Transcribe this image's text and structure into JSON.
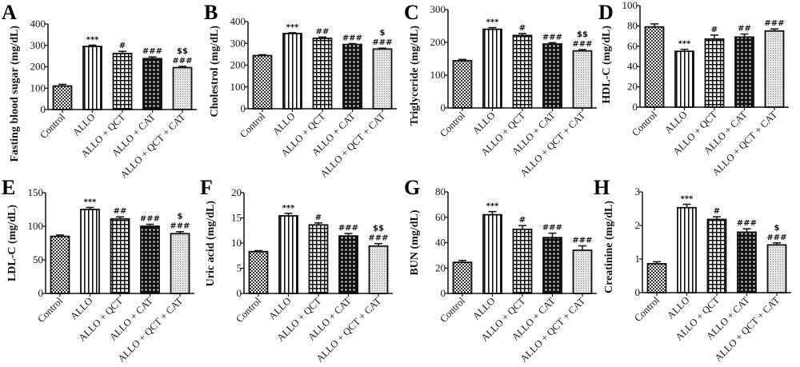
{
  "chart_data": [
    {
      "panel": "A",
      "type": "bar",
      "ylabel": "Fasting blood sugar (mg/dL)",
      "ylim": [
        0,
        400
      ],
      "yticks": [
        0,
        100,
        200,
        300,
        400
      ],
      "categories": [
        "Control",
        "ALLO",
        "ALLO + QCT",
        "ALLO + CAT",
        "ALLO + QCT + CAT"
      ],
      "values": [
        110,
        295,
        262,
        238,
        196
      ],
      "errors": [
        8,
        6,
        10,
        8,
        6
      ],
      "annotations": [
        [],
        [
          "***"
        ],
        [
          "#"
        ],
        [
          "###"
        ],
        [
          "###",
          "$$"
        ]
      ]
    },
    {
      "panel": "B",
      "type": "bar",
      "ylabel": "Cholestrol (mg/dL)",
      "ylim": [
        0,
        400
      ],
      "yticks": [
        0,
        100,
        200,
        300,
        400
      ],
      "categories": [
        "Control",
        "ALLO",
        "ALLO + QCT",
        "ALLO + CAT",
        "ALLO + QCT + CAT"
      ],
      "values": [
        244,
        345,
        323,
        295,
        274
      ],
      "errors": [
        4,
        4,
        6,
        4,
        4
      ],
      "annotations": [
        [],
        [
          "***"
        ],
        [
          "##"
        ],
        [
          "###"
        ],
        [
          "###",
          "$"
        ]
      ]
    },
    {
      "panel": "C",
      "type": "bar",
      "ylabel": "Triglyceride (mg/dL)",
      "ylim": [
        0,
        300
      ],
      "yticks": [
        0,
        100,
        200,
        300
      ],
      "categories": [
        "Control",
        "ALLO",
        "ALLO + QCT",
        "ALLO + CAT",
        "ALLO + QCT + CAT"
      ],
      "values": [
        144,
        240,
        221,
        195,
        174
      ],
      "errors": [
        4,
        5,
        6,
        4,
        4
      ],
      "annotations": [
        [],
        [
          "***"
        ],
        [
          "#"
        ],
        [
          "###"
        ],
        [
          "###",
          "$$"
        ]
      ]
    },
    {
      "panel": "D",
      "type": "bar",
      "ylabel": "HDL-C (mg/dL)",
      "ylim": [
        0,
        100
      ],
      "yticks": [
        0,
        20,
        40,
        60,
        80,
        100
      ],
      "categories": [
        "Control",
        "ALLO",
        "ALLO + QCT",
        "ALLO + CAT",
        "ALLO + QCT + CAT"
      ],
      "values": [
        79,
        55,
        67,
        69,
        75
      ],
      "errors": [
        3,
        2,
        4,
        3,
        2
      ],
      "annotations": [
        [],
        [
          "***"
        ],
        [
          "#"
        ],
        [
          "##"
        ],
        [
          "###"
        ]
      ]
    },
    {
      "panel": "E",
      "type": "bar",
      "ylabel": "LDL-C (mg/dL)",
      "ylim": [
        0,
        150
      ],
      "yticks": [
        0,
        50,
        100,
        150
      ],
      "categories": [
        "Control",
        "ALLO",
        "ALLO + QCT",
        "ALLO + CAT",
        "ALLO + QCT + CAT"
      ],
      "values": [
        85,
        125,
        111,
        100,
        89
      ],
      "errors": [
        2,
        3,
        3,
        3,
        3
      ],
      "annotations": [
        [],
        [
          "***"
        ],
        [
          "##"
        ],
        [
          "###"
        ],
        [
          "###",
          "$"
        ]
      ]
    },
    {
      "panel": "F",
      "type": "bar",
      "ylabel": "Uric acid (mg/dL)",
      "ylim": [
        0,
        20
      ],
      "yticks": [
        0,
        5,
        10,
        15,
        20
      ],
      "categories": [
        "Control",
        "ALLO",
        "ALLO + QCT",
        "ALLO + CAT",
        "ALLO + QCT + CAT"
      ],
      "values": [
        8.3,
        15.4,
        13.6,
        11.4,
        9.4
      ],
      "errors": [
        0.2,
        0.5,
        0.4,
        0.5,
        0.5
      ],
      "annotations": [
        [],
        [
          "***"
        ],
        [
          "#"
        ],
        [
          "###"
        ],
        [
          "###",
          "$$"
        ]
      ]
    },
    {
      "panel": "G",
      "type": "bar",
      "ylabel": "BUN (mg/dL)",
      "ylim": [
        0,
        80
      ],
      "yticks": [
        0,
        20,
        40,
        60,
        80
      ],
      "categories": [
        "Control",
        "ALLO",
        "ALLO + QCT",
        "ALLO + CAT",
        "ALLO + QCT + CAT"
      ],
      "values": [
        24.5,
        62,
        50.5,
        44,
        34
      ],
      "errors": [
        1.5,
        2.5,
        3,
        3.5,
        3.5
      ],
      "annotations": [
        [],
        [
          "***"
        ],
        [
          "#"
        ],
        [
          "###"
        ],
        [
          "###"
        ]
      ]
    },
    {
      "panel": "H",
      "type": "bar",
      "ylabel": "Creatinine (mg/dL)",
      "ylim": [
        0,
        3
      ],
      "yticks": [
        0,
        1,
        2,
        3
      ],
      "categories": [
        "Control",
        "ALLO",
        "ALLO + QCT",
        "ALLO + CAT",
        "ALLO + QCT + CAT"
      ],
      "values": [
        0.86,
        2.53,
        2.18,
        1.8,
        1.42
      ],
      "errors": [
        0.06,
        0.1,
        0.08,
        0.1,
        0.06
      ],
      "annotations": [
        [],
        [
          "***"
        ],
        [
          "#"
        ],
        [
          "###"
        ],
        [
          "###",
          "$"
        ]
      ]
    }
  ],
  "legend": "none",
  "grid": false,
  "bar_patterns": [
    "checkered",
    "vertical-stripes",
    "grid",
    "dense-crosshatch",
    "light-stipple"
  ]
}
